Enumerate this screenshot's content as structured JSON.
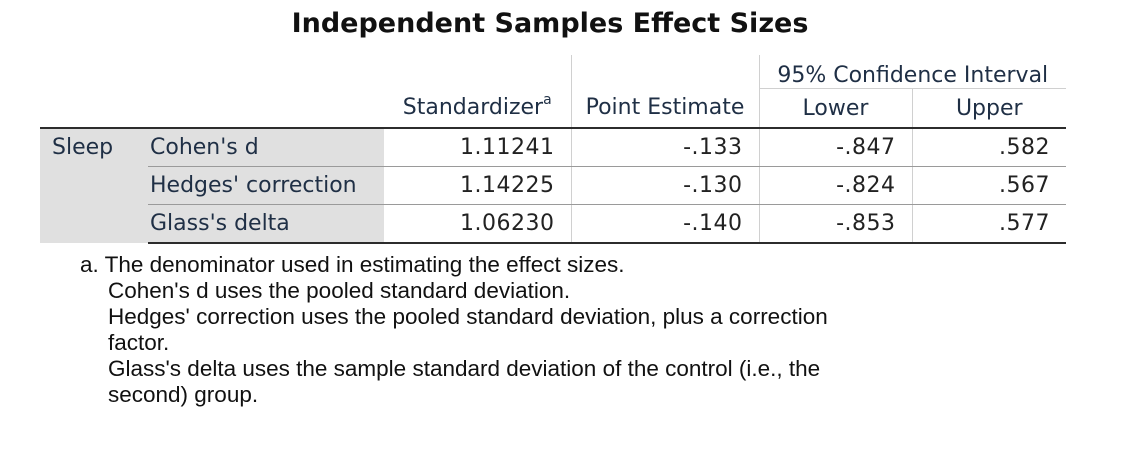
{
  "title": "Independent Samples Effect Sizes",
  "headers": {
    "ci_group": "95% Confidence Interval",
    "standardizer": "Standardizer",
    "standardizer_mark": "a",
    "point_estimate": "Point Estimate",
    "lower": "Lower",
    "upper": "Upper"
  },
  "variable": "Sleep",
  "rows": [
    {
      "statistic": "Cohen's d",
      "standardizer": "1.11241",
      "point_estimate": "-.133",
      "lower": "-.847",
      "upper": ".582"
    },
    {
      "statistic": "Hedges' correction",
      "standardizer": "1.14225",
      "point_estimate": "-.130",
      "lower": "-.824",
      "upper": ".567"
    },
    {
      "statistic": "Glass's delta",
      "standardizer": "1.06230",
      "point_estimate": "-.140",
      "lower": "-.853",
      "upper": ".577"
    }
  ],
  "footnote": {
    "line1": "a. The denominator used in estimating the effect sizes.",
    "line2": "Cohen's d uses the pooled standard deviation.",
    "line3": "Hedges' correction uses the pooled standard deviation, plus a correction",
    "line4": "factor.",
    "line5": "Glass's delta uses the sample standard deviation of the control (i.e., the",
    "line6": "second) group."
  }
}
